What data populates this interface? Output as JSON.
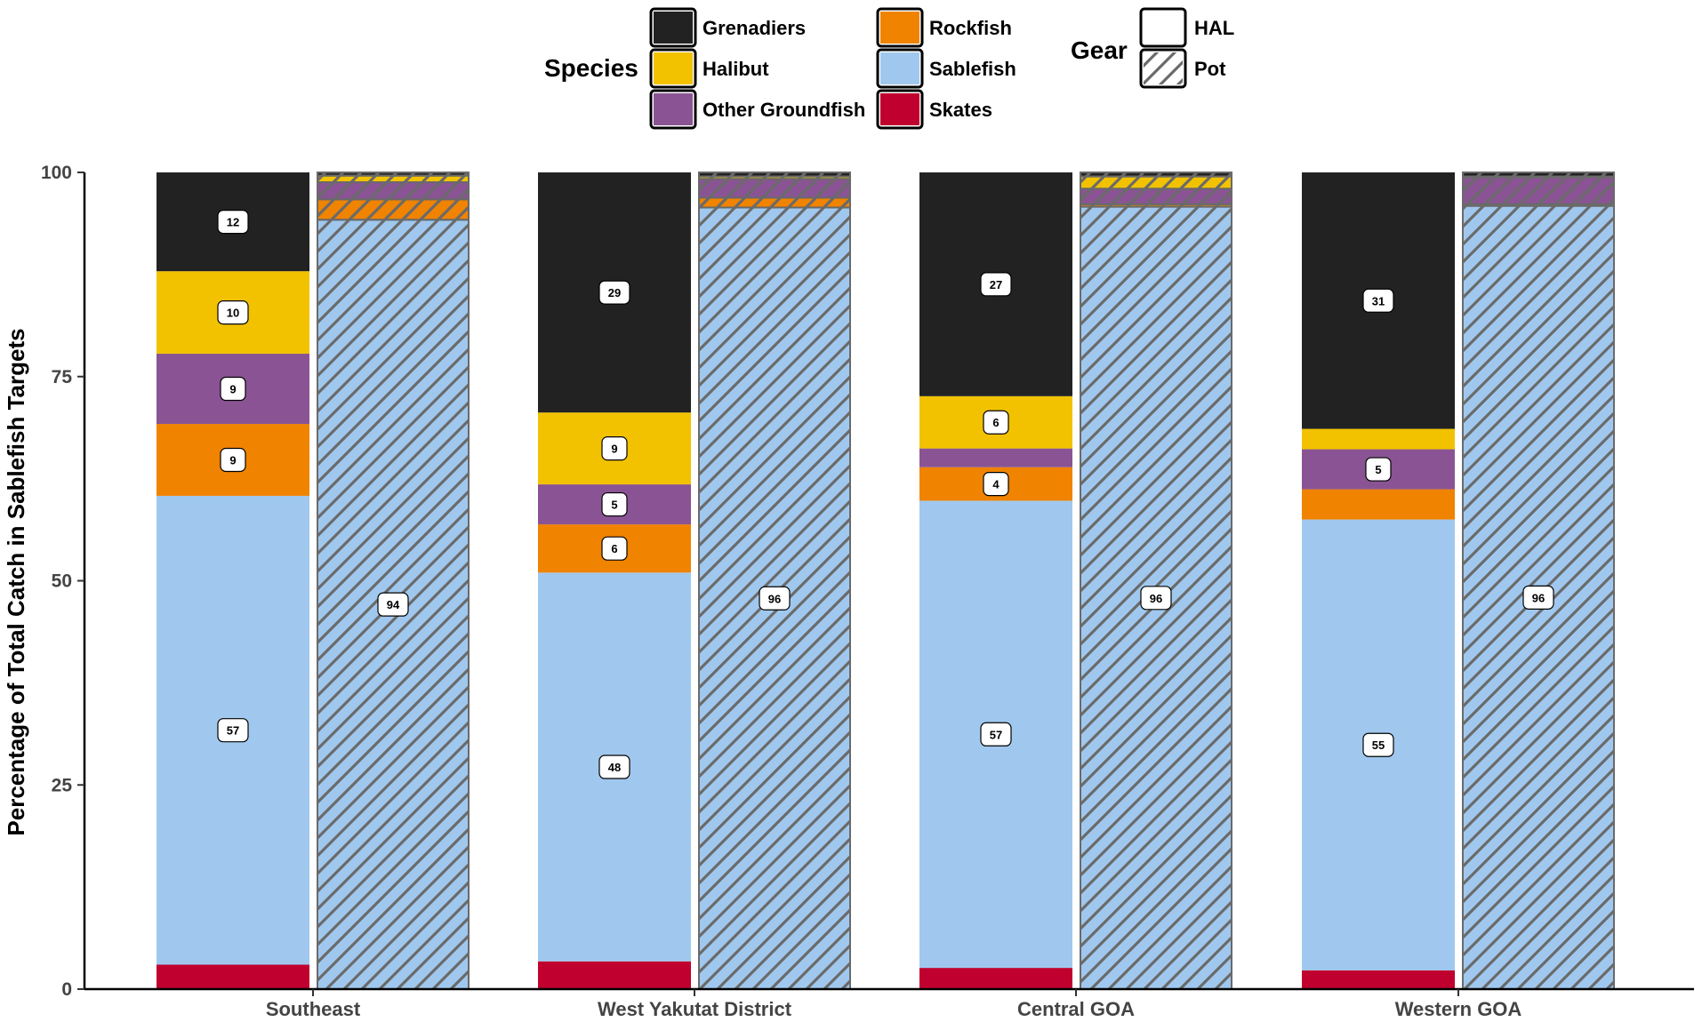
{
  "chart_data": {
    "type": "bar",
    "stacked": true,
    "ylabel": "Percentage of Total Catch in Sablefish Targets",
    "xlabel": "",
    "ylim": [
      0,
      100
    ],
    "yticks": [
      "0",
      "25",
      "50",
      "75",
      "100"
    ],
    "categories": [
      "Southeast",
      "West Yakutat District",
      "Central GOA",
      "Western GOA"
    ],
    "gear": [
      "HAL",
      "Pot"
    ],
    "legend_species": {
      "title": "Species",
      "entries": [
        "Grenadiers",
        "Halibut",
        "Other Groundfish",
        "Rockfish",
        "Sablefish",
        "Skates"
      ]
    },
    "legend_gear": {
      "title": "Gear",
      "entries": [
        "HAL",
        "Pot"
      ]
    },
    "colors": {
      "Grenadiers": "#222222",
      "Halibut": "#F2C200",
      "Other Groundfish": "#8A5494",
      "Rockfish": "#F08300",
      "Sablefish": "#A0C8EE",
      "Skates": "#C0002E"
    },
    "stack_order": [
      "Skates",
      "Sablefish",
      "Rockfish",
      "Other Groundfish",
      "Halibut",
      "Grenadiers"
    ],
    "bars": [
      {
        "category": "Southeast",
        "gear": "HAL",
        "values": {
          "Skates": 3,
          "Sablefish": 57.4,
          "Rockfish": 8.8,
          "Other Groundfish": 8.6,
          "Halibut": 10.1,
          "Grenadiers": 12.1
        },
        "labels": {
          "Sablefish": "57",
          "Rockfish": "9",
          "Other Groundfish": "9",
          "Halibut": "10",
          "Grenadiers": "12"
        }
      },
      {
        "category": "Southeast",
        "gear": "Pot",
        "values": {
          "Skates": 0,
          "Sablefish": 94.2,
          "Rockfish": 2.5,
          "Other Groundfish": 2.1,
          "Halibut": 0.8,
          "Grenadiers": 0.4
        },
        "labels": {
          "Sablefish": "94"
        }
      },
      {
        "category": "West Yakutat District",
        "gear": "HAL",
        "values": {
          "Skates": 3.4,
          "Sablefish": 47.6,
          "Rockfish": 5.9,
          "Other Groundfish": 4.9,
          "Halibut": 8.8,
          "Grenadiers": 29.4
        },
        "labels": {
          "Sablefish": "48",
          "Rockfish": "6",
          "Other Groundfish": "5",
          "Halibut": "9",
          "Grenadiers": "29"
        }
      },
      {
        "category": "West Yakutat District",
        "gear": "Pot",
        "values": {
          "Skates": 0,
          "Sablefish": 95.7,
          "Rockfish": 1.2,
          "Other Groundfish": 2.3,
          "Halibut": 0.3,
          "Grenadiers": 0.5
        },
        "labels": {
          "Sablefish": "96"
        }
      },
      {
        "category": "Central GOA",
        "gear": "HAL",
        "values": {
          "Skates": 2.6,
          "Sablefish": 57.2,
          "Rockfish": 4.1,
          "Other Groundfish": 2.3,
          "Halibut": 6.4,
          "Grenadiers": 27.4
        },
        "labels": {
          "Sablefish": "57",
          "Rockfish": "4",
          "Halibut": "6",
          "Grenadiers": "27"
        }
      },
      {
        "category": "Central GOA",
        "gear": "Pot",
        "values": {
          "Skates": 0,
          "Sablefish": 95.8,
          "Rockfish": 0.3,
          "Other Groundfish": 1.9,
          "Halibut": 1.5,
          "Grenadiers": 0.5
        },
        "labels": {
          "Sablefish": "96"
        }
      },
      {
        "category": "Western GOA",
        "gear": "HAL",
        "values": {
          "Skates": 2.3,
          "Sablefish": 55.2,
          "Rockfish": 3.7,
          "Other Groundfish": 4.9,
          "Halibut": 2.5,
          "Grenadiers": 31.4
        },
        "labels": {
          "Sablefish": "55",
          "Other Groundfish": "5",
          "Grenadiers": "31"
        }
      },
      {
        "category": "Western GOA",
        "gear": "Pot",
        "values": {
          "Skates": 0,
          "Sablefish": 95.9,
          "Rockfish": 0.2,
          "Other Groundfish": 3.3,
          "Halibut": 0.1,
          "Grenadiers": 0.5
        },
        "labels": {
          "Sablefish": "96"
        }
      }
    ],
    "grid": false,
    "legend_position": "top"
  }
}
